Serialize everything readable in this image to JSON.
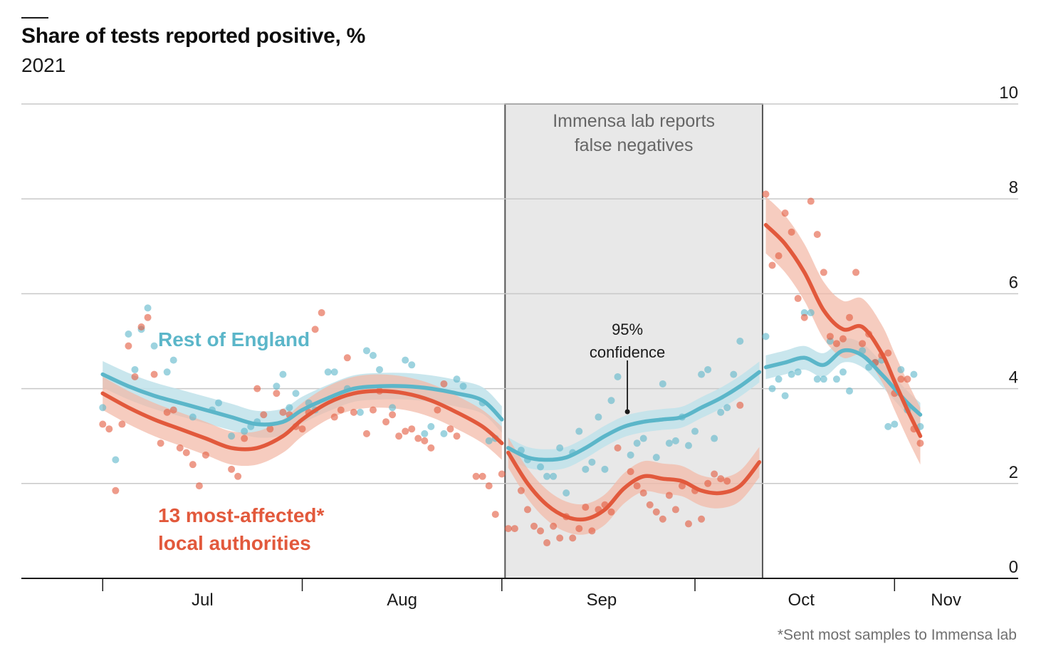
{
  "title": "Share of tests reported positive, %",
  "subtitle": "2021",
  "footnote": "*Sent most samples to Immensa lab",
  "colors": {
    "rest": "#5bb6c9",
    "rest_band": "#bfe2ea",
    "affected": "#e2593c",
    "affected_band": "#f2b9a6",
    "shade": "#e8e8e8",
    "grid": "#c8c8c8",
    "axis": "#1a1a1a"
  },
  "chart_data": {
    "type": "line",
    "title": "Share of tests reported positive, %",
    "subtitle": "2021",
    "ylim": [
      0,
      10
    ],
    "y_ticks": [
      "0",
      "2",
      "4",
      "6",
      "8",
      "10"
    ],
    "x_labels": [
      {
        "label": "Jul",
        "day": 15.5
      },
      {
        "label": "Aug",
        "day": 46.5
      },
      {
        "label": "Sep",
        "day": 77.5
      },
      {
        "label": "Oct",
        "day": 108.5
      },
      {
        "label": "Nov",
        "day": 131
      }
    ],
    "x_ticks": [
      0,
      31,
      62,
      92,
      123
    ],
    "xlim": [
      -6,
      140
    ],
    "shaded_period": {
      "start": 62.5,
      "end": 102.5,
      "label": [
        "Immensa lab reports",
        "false negatives"
      ]
    },
    "annotations": {
      "confidence": [
        "95%",
        "confidence"
      ],
      "rest_label": "Rest of England",
      "affected_label": [
        "13 most-affected*",
        "local authorities"
      ]
    },
    "series": [
      {
        "name": "Rest of England",
        "segments": [
          {
            "x": [
              0,
              4,
              8,
              12,
              16,
              20,
              24,
              28,
              31,
              35,
              39,
              43,
              47,
              51,
              55,
              59,
              62
            ],
            "y": [
              4.3,
              4.05,
              3.85,
              3.7,
              3.55,
              3.4,
              3.25,
              3.3,
              3.55,
              3.8,
              4.0,
              4.05,
              4.05,
              4.0,
              3.9,
              3.75,
              3.35
            ]
          },
          {
            "x": [
              63,
              66,
              69,
              72,
              75,
              78,
              81,
              84,
              87,
              90,
              93,
              96,
              99,
              102
            ],
            "y": [
              2.75,
              2.55,
              2.5,
              2.55,
              2.75,
              3.0,
              3.2,
              3.3,
              3.35,
              3.4,
              3.6,
              3.8,
              4.05,
              4.35
            ]
          },
          {
            "x": [
              103,
              106,
              109,
              112,
              115,
              118,
              121,
              123,
              125,
              127
            ],
            "y": [
              4.45,
              4.55,
              4.65,
              4.5,
              4.8,
              4.7,
              4.3,
              4.0,
              3.7,
              3.45
            ]
          }
        ],
        "band": [
          0.28,
          0.22,
          0.25
        ],
        "points": [
          [
            0,
            3.6
          ],
          [
            2,
            2.5
          ],
          [
            4,
            5.15
          ],
          [
            5,
            4.4
          ],
          [
            6,
            5.25
          ],
          [
            7,
            5.7
          ],
          [
            8,
            4.9
          ],
          [
            10,
            4.35
          ],
          [
            11,
            4.6
          ],
          [
            14,
            3.4
          ],
          [
            17,
            3.55
          ],
          [
            18,
            3.7
          ],
          [
            20,
            3.0
          ],
          [
            22,
            3.1
          ],
          [
            23,
            3.2
          ],
          [
            24,
            3.3
          ],
          [
            27,
            4.05
          ],
          [
            28,
            4.3
          ],
          [
            29,
            3.6
          ],
          [
            30,
            3.9
          ],
          [
            32,
            3.7
          ],
          [
            33,
            3.55
          ],
          [
            35,
            4.35
          ],
          [
            36,
            4.35
          ],
          [
            38,
            4.0
          ],
          [
            40,
            3.5
          ],
          [
            41,
            4.8
          ],
          [
            42,
            4.7
          ],
          [
            43,
            4.4
          ],
          [
            45,
            3.6
          ],
          [
            47,
            4.6
          ],
          [
            48,
            4.5
          ],
          [
            50,
            3.05
          ],
          [
            51,
            3.2
          ],
          [
            53,
            3.05
          ],
          [
            55,
            4.2
          ],
          [
            56,
            4.05
          ],
          [
            59,
            3.7
          ],
          [
            60,
            2.9
          ],
          [
            61,
            2.95
          ],
          [
            65,
            2.7
          ],
          [
            66,
            2.5
          ],
          [
            68,
            2.35
          ],
          [
            69,
            2.15
          ],
          [
            70,
            2.15
          ],
          [
            71,
            2.75
          ],
          [
            72,
            1.8
          ],
          [
            73,
            2.65
          ],
          [
            74,
            3.1
          ],
          [
            75,
            2.3
          ],
          [
            76,
            2.45
          ],
          [
            77,
            3.4
          ],
          [
            78,
            2.3
          ],
          [
            79,
            3.75
          ],
          [
            80,
            4.25
          ],
          [
            82,
            2.6
          ],
          [
            83,
            2.85
          ],
          [
            84,
            2.95
          ],
          [
            86,
            2.55
          ],
          [
            87,
            4.1
          ],
          [
            88,
            2.85
          ],
          [
            89,
            2.9
          ],
          [
            90,
            3.4
          ],
          [
            91,
            2.8
          ],
          [
            92,
            3.1
          ],
          [
            93,
            4.3
          ],
          [
            94,
            4.4
          ],
          [
            95,
            2.95
          ],
          [
            96,
            3.5
          ],
          [
            97,
            3.6
          ],
          [
            98,
            4.3
          ],
          [
            99,
            5.0
          ],
          [
            103,
            5.1
          ],
          [
            104,
            4.0
          ],
          [
            105,
            4.2
          ],
          [
            106,
            3.85
          ],
          [
            107,
            4.3
          ],
          [
            108,
            4.35
          ],
          [
            109,
            5.6
          ],
          [
            110,
            5.6
          ],
          [
            111,
            4.2
          ],
          [
            112,
            4.2
          ],
          [
            113,
            5.0
          ],
          [
            114,
            4.2
          ],
          [
            115,
            4.35
          ],
          [
            116,
            3.95
          ],
          [
            118,
            4.8
          ],
          [
            119,
            4.45
          ],
          [
            120,
            4.55
          ],
          [
            121,
            4.6
          ],
          [
            122,
            3.2
          ],
          [
            123,
            3.25
          ],
          [
            124,
            4.4
          ],
          [
            125,
            3.55
          ],
          [
            126,
            4.3
          ],
          [
            127,
            3.2
          ]
        ]
      },
      {
        "name": "13 most-affected* local authorities",
        "segments": [
          {
            "x": [
              0,
              4,
              8,
              12,
              16,
              20,
              24,
              28,
              31,
              35,
              39,
              43,
              47,
              51,
              55,
              59,
              62
            ],
            "y": [
              3.9,
              3.6,
              3.35,
              3.15,
              2.95,
              2.75,
              2.75,
              3.0,
              3.35,
              3.7,
              3.9,
              3.95,
              3.9,
              3.75,
              3.5,
              3.2,
              2.85
            ]
          },
          {
            "x": [
              63,
              66,
              69,
              72,
              75,
              78,
              81,
              84,
              87,
              90,
              93,
              96,
              99,
              102
            ],
            "y": [
              2.65,
              2.0,
              1.55,
              1.3,
              1.25,
              1.45,
              1.9,
              2.15,
              2.1,
              2.05,
              1.85,
              1.8,
              1.95,
              2.45
            ]
          },
          {
            "x": [
              103,
              106,
              109,
              112,
              115,
              118,
              121,
              123,
              125,
              127
            ],
            "y": [
              7.45,
              7.05,
              6.45,
              5.65,
              5.25,
              5.3,
              4.75,
              4.15,
              3.55,
              3.0
            ]
          }
        ],
        "band": [
          0.35,
          0.32,
          0.6
        ],
        "points": [
          [
            0,
            3.25
          ],
          [
            1,
            3.15
          ],
          [
            2,
            1.85
          ],
          [
            3,
            3.25
          ],
          [
            4,
            4.9
          ],
          [
            5,
            4.25
          ],
          [
            6,
            5.3
          ],
          [
            7,
            5.5
          ],
          [
            8,
            4.3
          ],
          [
            9,
            2.85
          ],
          [
            10,
            3.5
          ],
          [
            11,
            3.55
          ],
          [
            12,
            2.75
          ],
          [
            13,
            2.65
          ],
          [
            14,
            2.4
          ],
          [
            15,
            1.95
          ],
          [
            16,
            2.6
          ],
          [
            20,
            2.3
          ],
          [
            21,
            2.15
          ],
          [
            22,
            2.95
          ],
          [
            24,
            4.0
          ],
          [
            25,
            3.45
          ],
          [
            26,
            3.15
          ],
          [
            27,
            3.9
          ],
          [
            28,
            3.5
          ],
          [
            29,
            3.45
          ],
          [
            30,
            3.2
          ],
          [
            31,
            3.15
          ],
          [
            32,
            3.5
          ],
          [
            33,
            5.25
          ],
          [
            34,
            5.6
          ],
          [
            36,
            3.4
          ],
          [
            37,
            3.55
          ],
          [
            38,
            4.65
          ],
          [
            39,
            3.5
          ],
          [
            41,
            3.05
          ],
          [
            42,
            3.55
          ],
          [
            43,
            3.95
          ],
          [
            44,
            3.3
          ],
          [
            45,
            3.45
          ],
          [
            46,
            3.0
          ],
          [
            47,
            3.1
          ],
          [
            48,
            3.15
          ],
          [
            49,
            2.95
          ],
          [
            50,
            2.9
          ],
          [
            51,
            2.75
          ],
          [
            52,
            3.55
          ],
          [
            53,
            4.1
          ],
          [
            54,
            3.15
          ],
          [
            55,
            3.0
          ],
          [
            58,
            2.15
          ],
          [
            59,
            2.15
          ],
          [
            60,
            1.95
          ],
          [
            61,
            1.35
          ],
          [
            62,
            2.2
          ],
          [
            63,
            1.05
          ],
          [
            64,
            1.05
          ],
          [
            65,
            1.85
          ],
          [
            66,
            1.45
          ],
          [
            67,
            1.1
          ],
          [
            68,
            1.0
          ],
          [
            69,
            0.75
          ],
          [
            70,
            1.1
          ],
          [
            71,
            0.85
          ],
          [
            72,
            1.3
          ],
          [
            73,
            0.85
          ],
          [
            74,
            1.05
          ],
          [
            75,
            1.5
          ],
          [
            76,
            1.0
          ],
          [
            77,
            1.45
          ],
          [
            78,
            1.55
          ],
          [
            79,
            1.4
          ],
          [
            80,
            2.75
          ],
          [
            82,
            2.25
          ],
          [
            83,
            1.95
          ],
          [
            84,
            1.8
          ],
          [
            85,
            1.55
          ],
          [
            86,
            1.4
          ],
          [
            87,
            1.25
          ],
          [
            88,
            1.75
          ],
          [
            89,
            1.45
          ],
          [
            90,
            1.95
          ],
          [
            91,
            1.15
          ],
          [
            92,
            1.85
          ],
          [
            93,
            1.25
          ],
          [
            94,
            2.0
          ],
          [
            95,
            2.2
          ],
          [
            96,
            2.1
          ],
          [
            97,
            2.05
          ],
          [
            99,
            3.65
          ],
          [
            103,
            8.1
          ],
          [
            104,
            6.6
          ],
          [
            105,
            6.8
          ],
          [
            106,
            7.7
          ],
          [
            107,
            7.3
          ],
          [
            108,
            5.9
          ],
          [
            109,
            5.5
          ],
          [
            110,
            7.95
          ],
          [
            111,
            7.25
          ],
          [
            112,
            6.45
          ],
          [
            113,
            5.1
          ],
          [
            114,
            4.95
          ],
          [
            115,
            5.05
          ],
          [
            116,
            5.5
          ],
          [
            117,
            6.45
          ],
          [
            118,
            4.95
          ],
          [
            119,
            5.15
          ],
          [
            120,
            4.55
          ],
          [
            121,
            4.7
          ],
          [
            122,
            4.75
          ],
          [
            123,
            3.9
          ],
          [
            124,
            4.2
          ],
          [
            125,
            4.2
          ],
          [
            126,
            3.15
          ],
          [
            127,
            2.85
          ]
        ]
      }
    ]
  }
}
